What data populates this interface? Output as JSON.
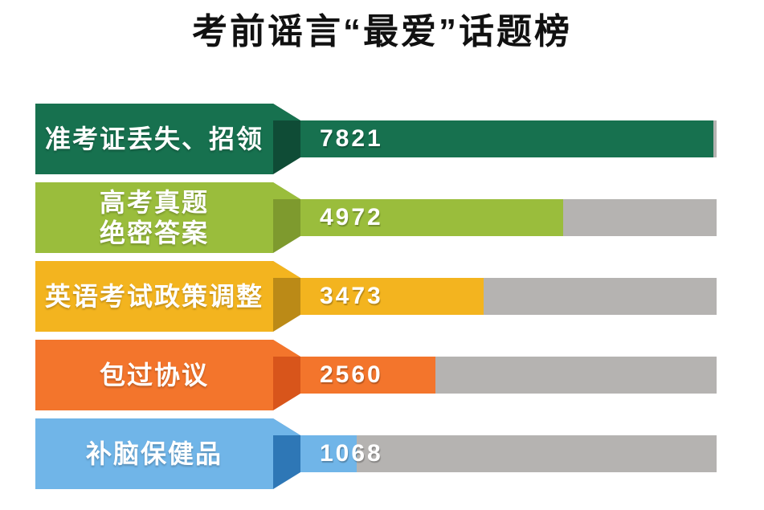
{
  "title": "考前谣言“最爱”话题榜",
  "colors": {
    "background": "#ffffff",
    "title_text": "#111111",
    "bar_text": "#ffffff",
    "track": "#b5b3b1"
  },
  "chart_data": {
    "type": "bar",
    "orientation": "horizontal",
    "title": "考前谣言“最爱”话题榜",
    "categories": [
      "准考证丢失、招领",
      "高考真题 绝密答案",
      "英语考试政策调整",
      "包过协议",
      "补脑保健品"
    ],
    "category_lines": [
      [
        "准考证丢失、招领"
      ],
      [
        "高考真题",
        "绝密答案"
      ],
      [
        "英语考试政策调整"
      ],
      [
        "包过协议"
      ],
      [
        "补脑保健品"
      ]
    ],
    "values": [
      7821,
      4972,
      3473,
      2560,
      1068
    ],
    "value_axis_max": 7880,
    "grid": false,
    "legend": false,
    "bar_colors": [
      "#17714f",
      "#9abd3c",
      "#f3b41f",
      "#f3752c",
      "#70b5e8"
    ],
    "fold_shade_colors": [
      "#0f4c36",
      "#7e9a2e",
      "#bb8a17",
      "#d8551b",
      "#2e77b6"
    ]
  }
}
